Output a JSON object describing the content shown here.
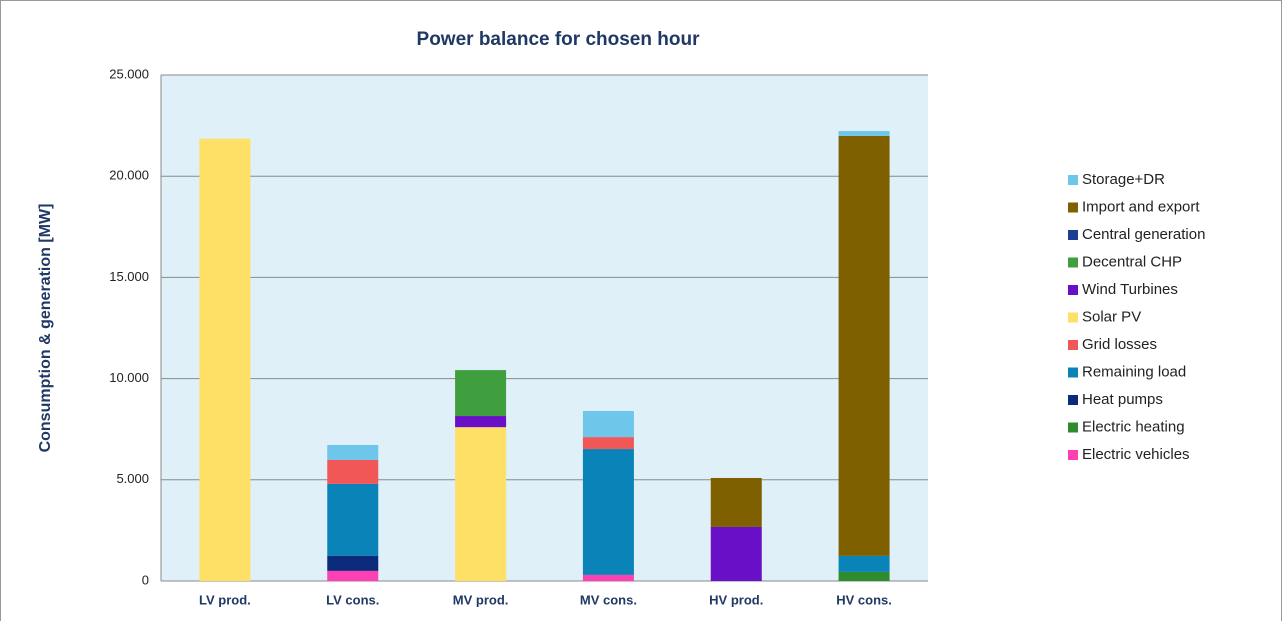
{
  "chart_data": {
    "type": "stacked_bar",
    "title": "Power balance for chosen hour",
    "y_label": "Consumption & generation [MW]",
    "categories": [
      "LV prod.",
      "LV cons.",
      "MV prod.",
      "MV cons.",
      "HV prod.",
      "HV cons."
    ],
    "series": [
      {
        "name": "Electric vehicles",
        "color": "#ff3fb4",
        "values": [
          0,
          500,
          0,
          300,
          0,
          0
        ]
      },
      {
        "name": "Electric heating",
        "color": "#2e8b2e",
        "values": [
          0,
          0,
          0,
          0,
          0,
          450
        ]
      },
      {
        "name": "Heat pumps",
        "color": "#0b2a7a",
        "values": [
          0,
          750,
          0,
          0,
          0,
          0
        ]
      },
      {
        "name": "Remaining load",
        "color": "#0a84b8",
        "values": [
          0,
          3550,
          0,
          6220,
          0,
          790
        ]
      },
      {
        "name": "Grid losses",
        "color": "#f25757",
        "values": [
          0,
          1180,
          0,
          590,
          0,
          0
        ]
      },
      {
        "name": "Solar PV",
        "color": "#ffe066",
        "values": [
          21850,
          0,
          7600,
          0,
          0,
          0
        ]
      },
      {
        "name": "Wind Turbines",
        "color": "#6a0fc8",
        "values": [
          0,
          0,
          550,
          0,
          2670,
          0
        ]
      },
      {
        "name": "Decentral CHP",
        "color": "#3f9f3f",
        "values": [
          0,
          0,
          2270,
          0,
          0,
          0
        ]
      },
      {
        "name": "Central generation",
        "color": "#1b3d93",
        "values": [
          0,
          0,
          0,
          0,
          0,
          0
        ]
      },
      {
        "name": "Import and export",
        "color": "#7f6000",
        "values": [
          0,
          0,
          0,
          0,
          2420,
          20750
        ]
      },
      {
        "name": "Storage+DR",
        "color": "#6ec6ea",
        "values": [
          0,
          740,
          0,
          1290,
          0,
          240
        ]
      }
    ],
    "ylim": [
      0,
      25000
    ],
    "yticks": [
      0,
      {
        "value": 5000,
        "label": "5.000"
      },
      {
        "value": 10000,
        "label": "10.000"
      },
      {
        "value": 15000,
        "label": "15.000"
      },
      {
        "value": 20000,
        "label": "20.000"
      },
      {
        "value": 25000,
        "label": "25.000"
      }
    ],
    "grid": true,
    "legend": "right"
  }
}
